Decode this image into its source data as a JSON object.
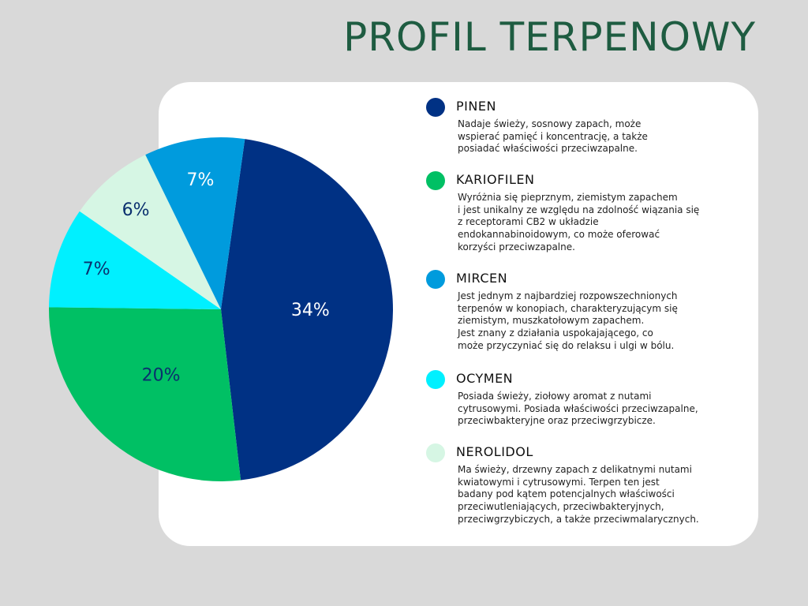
{
  "page_title": "PROFIL TERPENOWY",
  "colors": {
    "background": "#d9d9d9",
    "card": "#ffffff",
    "title": "#1e5c41"
  },
  "chart_data": {
    "type": "pie",
    "slices": [
      {
        "name": "PINEN",
        "label": "34%",
        "value": 34,
        "color": "#003184",
        "label_color": "#ffffff"
      },
      {
        "name": "KARIOFILEN",
        "label": "20%",
        "value": 20,
        "color": "#00c064",
        "label_color": "#0a2f6e"
      },
      {
        "name": "OCYMEN",
        "label": "7%",
        "value": 7,
        "color": "#00f0ff",
        "label_color": "#0a2f6e"
      },
      {
        "name": "NEROLIDOL",
        "label": "6%",
        "value": 6,
        "color": "#d6f6e4",
        "label_color": "#0a2f6e"
      },
      {
        "name": "MIRCEN",
        "label": "7%",
        "value": 7,
        "color": "#009bdd",
        "label_color": "#ffffff"
      }
    ]
  },
  "legend": {
    "items": [
      {
        "name": "PINEN",
        "color": "#003184",
        "description": "Nadaje świeży, sosnowy zapach, może\nwspierać pamięć i koncentrację, a także\nposiadać właściwości przeciwzapalne."
      },
      {
        "name": "KARIOFILEN",
        "color": "#00c064",
        "description": "Wyróżnia się pieprznym, ziemistym zapachem\ni jest unikalny ze względu na zdolność wiązania się\nz receptorami CB2 w układzie\nendokannabinoidowym, co może oferować\nkorzyści przeciwzapalne."
      },
      {
        "name": "MIRCEN",
        "color": "#009bdd",
        "description": "Jest jednym z najbardziej rozpowszechnionych\nterpenów w konopiach, charakteryzującym się\nziemistym, muszkatołowym zapachem.\nJest znany z działania uspokajającego, co\nmoże przyczyniać się do relaksu i ulgi w bólu."
      },
      {
        "name": "OCYMEN",
        "color": "#00f0ff",
        "description": "Posiada świeży, ziołowy aromat z nutami\ncytrusowymi. Posiada właściwości przeciwzapalne,\nprzeciwbakteryjne oraz przeciwgrzybicze."
      },
      {
        "name": "NEROLIDOL",
        "color": "#d6f6e4",
        "description": "Ma świeży, drzewny zapach z delikatnymi nutami\nkwiatowymi i cytrusowymi. Terpen ten jest\nbadany pod kątem potencjalnych właściwości\nprzeciwutleniających, przeciwbakteryjnych,\nprzeciwgrzybiczych, a także przeciwmalarycznych."
      }
    ]
  }
}
